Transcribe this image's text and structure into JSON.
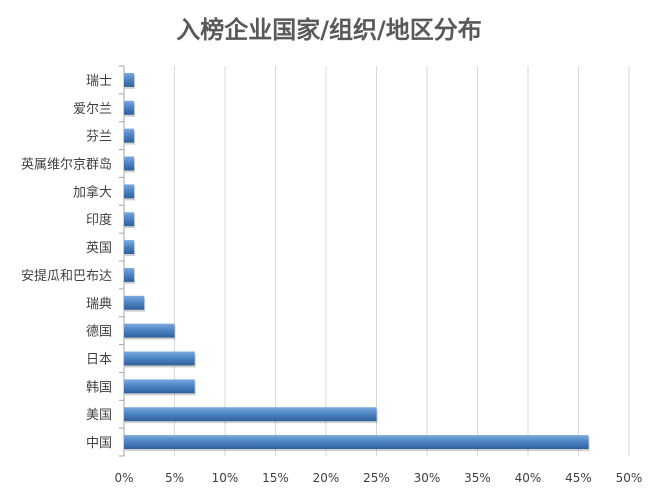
{
  "chart_data": {
    "type": "bar",
    "orientation": "horizontal",
    "title": "入榜企业国家/组织/地区分布",
    "categories": [
      "瑞士",
      "爱尔兰",
      "芬兰",
      "英属维尔京群岛",
      "加拿大",
      "印度",
      "英国",
      "安提瓜和巴布达",
      "瑞典",
      "德国",
      "日本",
      "韩国",
      "美国",
      "中国"
    ],
    "values": [
      1,
      1,
      1,
      1,
      1,
      1,
      1,
      1,
      2,
      5,
      7,
      7,
      25,
      46
    ],
    "value_unit": "%",
    "xlim": [
      0,
      50
    ],
    "xticks": [
      "0%",
      "5%",
      "10%",
      "15%",
      "20%",
      "25%",
      "30%",
      "35%",
      "40%",
      "45%",
      "50%"
    ],
    "xlabel": "",
    "ylabel": "",
    "grid": "vertical",
    "legend": "none",
    "bar_color": "#4f86c6"
  }
}
